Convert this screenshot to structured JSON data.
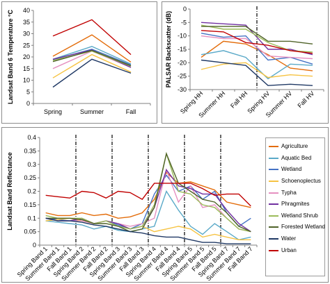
{
  "chart_data": [
    {
      "type": "line",
      "panel": "temperature",
      "title": "",
      "xlabel": "",
      "ylabel": "Landsat Band 6 Temperature °C",
      "categories": [
        "Spring",
        "Summer",
        "Fall"
      ],
      "ylim": [
        0,
        40
      ],
      "yticks": [
        0,
        5,
        10,
        15,
        20,
        25,
        30,
        35,
        40
      ],
      "grid": false,
      "series": [
        {
          "color": "#e36c0a",
          "values": [
            20.3,
            29.5,
            17.8
          ]
        },
        {
          "color": "#5aa9c8",
          "values": [
            19.0,
            24.5,
            17.0
          ]
        },
        {
          "color": "#4472c4",
          "values": [
            18.8,
            23.3,
            16.6
          ]
        },
        {
          "color": "#f6c342",
          "values": [
            11.0,
            21.0,
            13.5
          ]
        },
        {
          "color": "#e58fc0",
          "values": [
            15.0,
            22.5,
            15.5
          ]
        },
        {
          "color": "#7030a0",
          "values": [
            19.0,
            23.0,
            15.5
          ]
        },
        {
          "color": "#9bbb59",
          "values": [
            18.5,
            22.5,
            16.0
          ]
        },
        {
          "color": "#4f6228",
          "values": [
            18.0,
            22.8,
            16.2
          ]
        },
        {
          "color": "#1f3864",
          "values": [
            7.0,
            19.0,
            13.0
          ]
        },
        {
          "color": "#c00000",
          "values": [
            29.0,
            36.0,
            21.0
          ]
        }
      ]
    },
    {
      "type": "line",
      "panel": "palsar",
      "title": "",
      "xlabel": "",
      "ylabel": "PALSAR Backscatter (dB)",
      "categories": [
        "Spring HH",
        "Summer HH",
        "Fall HH",
        "Spring HV",
        "Summer HV",
        "Fall HV"
      ],
      "ylim": [
        -30,
        0
      ],
      "yticks": [
        0,
        -5,
        -10,
        -15,
        -20,
        -25,
        -30
      ],
      "grid": false,
      "separator_after_index": 2,
      "series": [
        {
          "color": "#e36c0a",
          "values": [
            -18.0,
            -12.0,
            -13.0,
            -17.0,
            -22.0,
            -23.0
          ]
        },
        {
          "color": "#5aa9c8",
          "values": [
            -17.0,
            -15.5,
            -18.0,
            -26.0,
            -20.5,
            -21.0
          ]
        },
        {
          "color": "#4472c4",
          "values": [
            -9.0,
            -10.5,
            -10.0,
            -19.0,
            -18.0,
            -20.5
          ]
        },
        {
          "color": "#f6c342",
          "values": [
            -22.5,
            -20.5,
            -20.0,
            -25.5,
            -24.5,
            -25.0
          ]
        },
        {
          "color": "#e58fc0",
          "values": [
            -10.0,
            -11.0,
            -11.0,
            -17.5,
            -18.0,
            -18.5
          ]
        },
        {
          "color": "#7030a0",
          "values": [
            -5.0,
            -5.5,
            -6.0,
            -15.0,
            -15.0,
            -17.0
          ]
        },
        {
          "color": "#9bbb59",
          "values": [
            -6.0,
            -7.5,
            -7.5,
            -12.5,
            -15.5,
            -16.0
          ]
        },
        {
          "color": "#4f6228",
          "values": [
            -6.5,
            -6.5,
            -6.5,
            -12.0,
            -12.0,
            -13.0
          ]
        },
        {
          "color": "#1f3864",
          "values": [
            -19.0,
            -20.0,
            -21.0,
            -28.5,
            -28.0,
            -28.5
          ]
        },
        {
          "color": "#c00000",
          "values": [
            -8.0,
            -8.5,
            -12.5,
            -13.5,
            -15.5,
            -16.5
          ]
        }
      ]
    },
    {
      "type": "line",
      "panel": "reflectance",
      "title": "",
      "xlabel": "",
      "ylabel": "Landsat Band Reflectance",
      "categories": [
        "Spring Band 1",
        "Summer Band 1",
        "Fall Band 1",
        "Spring Band 2",
        "Summer Band 2",
        "Fall Band 2",
        "Spring Band 3",
        "Summer Band 3",
        "Fall Band 3",
        "Spring Band 4",
        "Summer Band 4",
        "Fall Band 4",
        "Spring Band 5",
        "Summer Band 5",
        "Fall Band 5",
        "Spring Band 7",
        "Summer Band 7",
        "Fall Band 7"
      ],
      "ylim": [
        0,
        0.4
      ],
      "yticks": [
        0,
        0.05,
        0.1,
        0.15,
        0.2,
        0.25,
        0.3,
        0.35,
        0.4
      ],
      "grid": false,
      "separators_after_index": [
        2,
        5,
        8,
        11,
        14
      ],
      "legend_position": "right",
      "series": [
        {
          "name": "Agriculture",
          "color": "#e36c0a",
          "values": [
            0.12,
            0.11,
            0.11,
            0.12,
            0.11,
            0.115,
            0.1,
            0.105,
            0.12,
            0.17,
            0.27,
            0.23,
            0.235,
            0.22,
            0.205,
            0.16,
            0.15,
            0.14
          ]
        },
        {
          "name": "Aquatic Bed",
          "color": "#5aa9c8",
          "values": [
            0.09,
            0.085,
            0.08,
            0.075,
            0.06,
            0.07,
            0.055,
            0.05,
            0.06,
            0.07,
            0.2,
            0.13,
            0.07,
            0.04,
            0.08,
            0.05,
            0.02,
            0.03
          ]
        },
        {
          "name": "Wetland",
          "color": "#4472c4",
          "values": [
            0.1,
            0.095,
            0.09,
            0.095,
            0.08,
            0.09,
            0.075,
            0.06,
            0.08,
            0.19,
            0.26,
            0.2,
            0.22,
            0.17,
            0.2,
            0.12,
            0.07,
            0.1
          ]
        },
        {
          "name": "Schoenoplectus",
          "color": "#f6c342",
          "values": [
            0.09,
            0.095,
            0.1,
            0.09,
            0.08,
            0.09,
            0.08,
            0.06,
            0.07,
            0.05,
            0.06,
            0.07,
            0.06,
            0.03,
            0.04,
            0.03,
            0.02,
            0.02
          ]
        },
        {
          "name": "Typha",
          "color": "#e58fc0",
          "values": [
            0.1,
            0.09,
            0.09,
            0.09,
            0.08,
            0.09,
            0.08,
            0.07,
            0.08,
            0.1,
            0.28,
            0.16,
            0.22,
            0.14,
            0.15,
            0.1,
            0.06,
            0.05
          ]
        },
        {
          "name": "Phragmites",
          "color": "#7030a0",
          "values": [
            0.1,
            0.09,
            0.09,
            0.1,
            0.08,
            0.09,
            0.08,
            0.06,
            0.07,
            0.14,
            0.28,
            0.22,
            0.21,
            0.19,
            0.19,
            0.13,
            0.08,
            0.05
          ]
        },
        {
          "name": "Wetland Shrub",
          "color": "#9bbb59",
          "values": [
            0.11,
            0.1,
            0.1,
            0.1,
            0.08,
            0.09,
            0.07,
            0.06,
            0.07,
            0.15,
            0.34,
            0.2,
            0.19,
            0.15,
            0.14,
            0.1,
            0.06,
            0.05
          ]
        },
        {
          "name": "Forested Wetland",
          "color": "#4f6228",
          "values": [
            0.1,
            0.1,
            0.1,
            0.095,
            0.08,
            0.08,
            0.07,
            0.05,
            0.06,
            0.14,
            0.34,
            0.23,
            0.2,
            0.17,
            0.16,
            0.12,
            0.07,
            0.05
          ]
        },
        {
          "name": "Water",
          "color": "#1f3864",
          "values": [
            0.1,
            0.09,
            0.09,
            0.085,
            0.075,
            0.07,
            0.06,
            0.05,
            0.045,
            0.035,
            0.03,
            0.03,
            0.02,
            0.01,
            0.01,
            0.005,
            0.005,
            0.005
          ]
        },
        {
          "name": "Urban",
          "color": "#c00000",
          "values": [
            0.185,
            0.18,
            0.175,
            0.2,
            0.195,
            0.175,
            0.2,
            0.195,
            0.17,
            0.23,
            0.23,
            0.23,
            0.23,
            0.21,
            0.185,
            0.19,
            0.19,
            0.145
          ]
        }
      ]
    }
  ]
}
